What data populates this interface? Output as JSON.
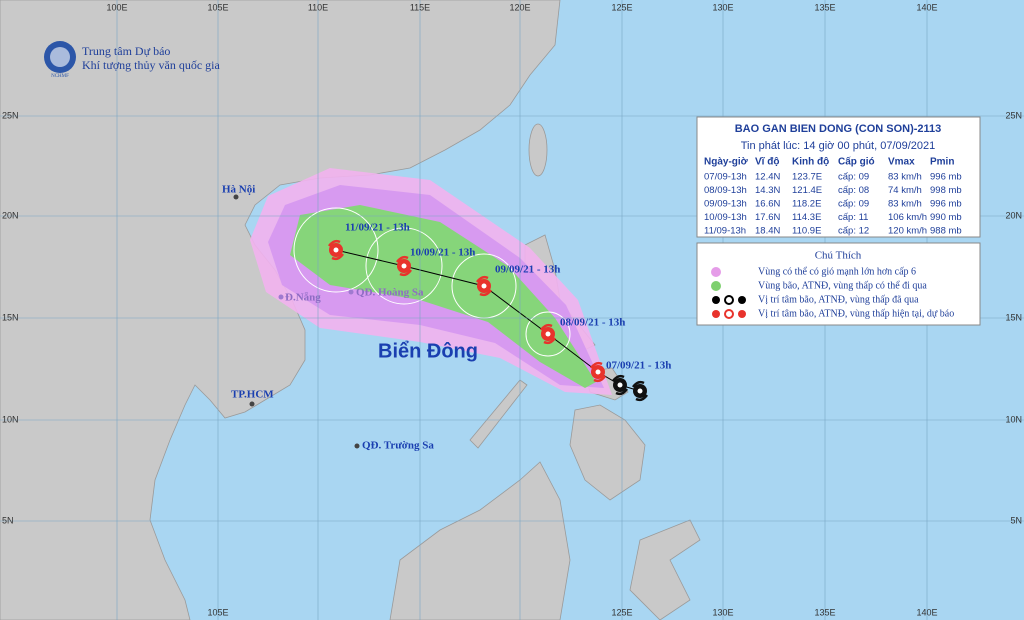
{
  "header": {
    "line1": "Trung tâm Dự báo",
    "line2": "Khí tượng thủy văn quốc gia",
    "logo": "NCHMF"
  },
  "grid": {
    "top": [
      "100E",
      "105E",
      "110E",
      "115E",
      "120E",
      "125E",
      "130E",
      "135E",
      "140E"
    ],
    "bottom": [
      "105E",
      "125E",
      "130E",
      "135E",
      "140E"
    ],
    "left": [
      "25N",
      "20N",
      "15N",
      "10N",
      "5N"
    ],
    "right": [
      "25N",
      "20N",
      "15N",
      "10N",
      "5N"
    ]
  },
  "bulletin": {
    "title": "BAO GAN BIEN DONG (CON SON)-2113",
    "issued": "Tin phát lúc: 14 giờ 00 phút, 07/09/2021",
    "columns": [
      "Ngày-giờ",
      "Vĩ độ",
      "Kinh độ",
      "Cấp gió",
      "Vmax",
      "Pmin"
    ],
    "rows": [
      [
        "07/09-13h",
        "12.4N",
        "123.7E",
        "cấp: 09",
        "83 km/h",
        "996 mb"
      ],
      [
        "08/09-13h",
        "14.3N",
        "121.4E",
        "cấp: 08",
        "74 km/h",
        "998 mb"
      ],
      [
        "09/09-13h",
        "16.6N",
        "118.2E",
        "cấp: 09",
        "83 km/h",
        "996 mb"
      ],
      [
        "10/09-13h",
        "17.6N",
        "114.3E",
        "cấp: 11",
        "106 km/h",
        "990 mb"
      ],
      [
        "11/09-13h",
        "18.4N",
        "110.9E",
        "cấp: 12",
        "120 km/h",
        "988 mb"
      ]
    ]
  },
  "legend": {
    "title": "Chú Thích",
    "items": [
      "Vùng có thể có gió mạnh lớn hơn cấp 6",
      "Vùng bão, ATNĐ, vùng thấp có thể đi qua",
      "Vị trí tâm bão, ATNĐ, vùng thấp đã qua",
      "Vị trí tâm bão, ATNĐ, vùng thấp hiện tại, dự báo"
    ]
  },
  "places": [
    "Hà Nội",
    "Đ.Nẵng",
    "QĐ. Hoàng Sa",
    "TP.HCM",
    "QĐ. Trường Sa"
  ],
  "sea_label": "Biển Đông",
  "track_labels": [
    "07/09/21 - 13h",
    "08/09/21 - 13h",
    "09/09/21 - 13h",
    "10/09/21 - 13h",
    "11/09/21 - 13h"
  ]
}
